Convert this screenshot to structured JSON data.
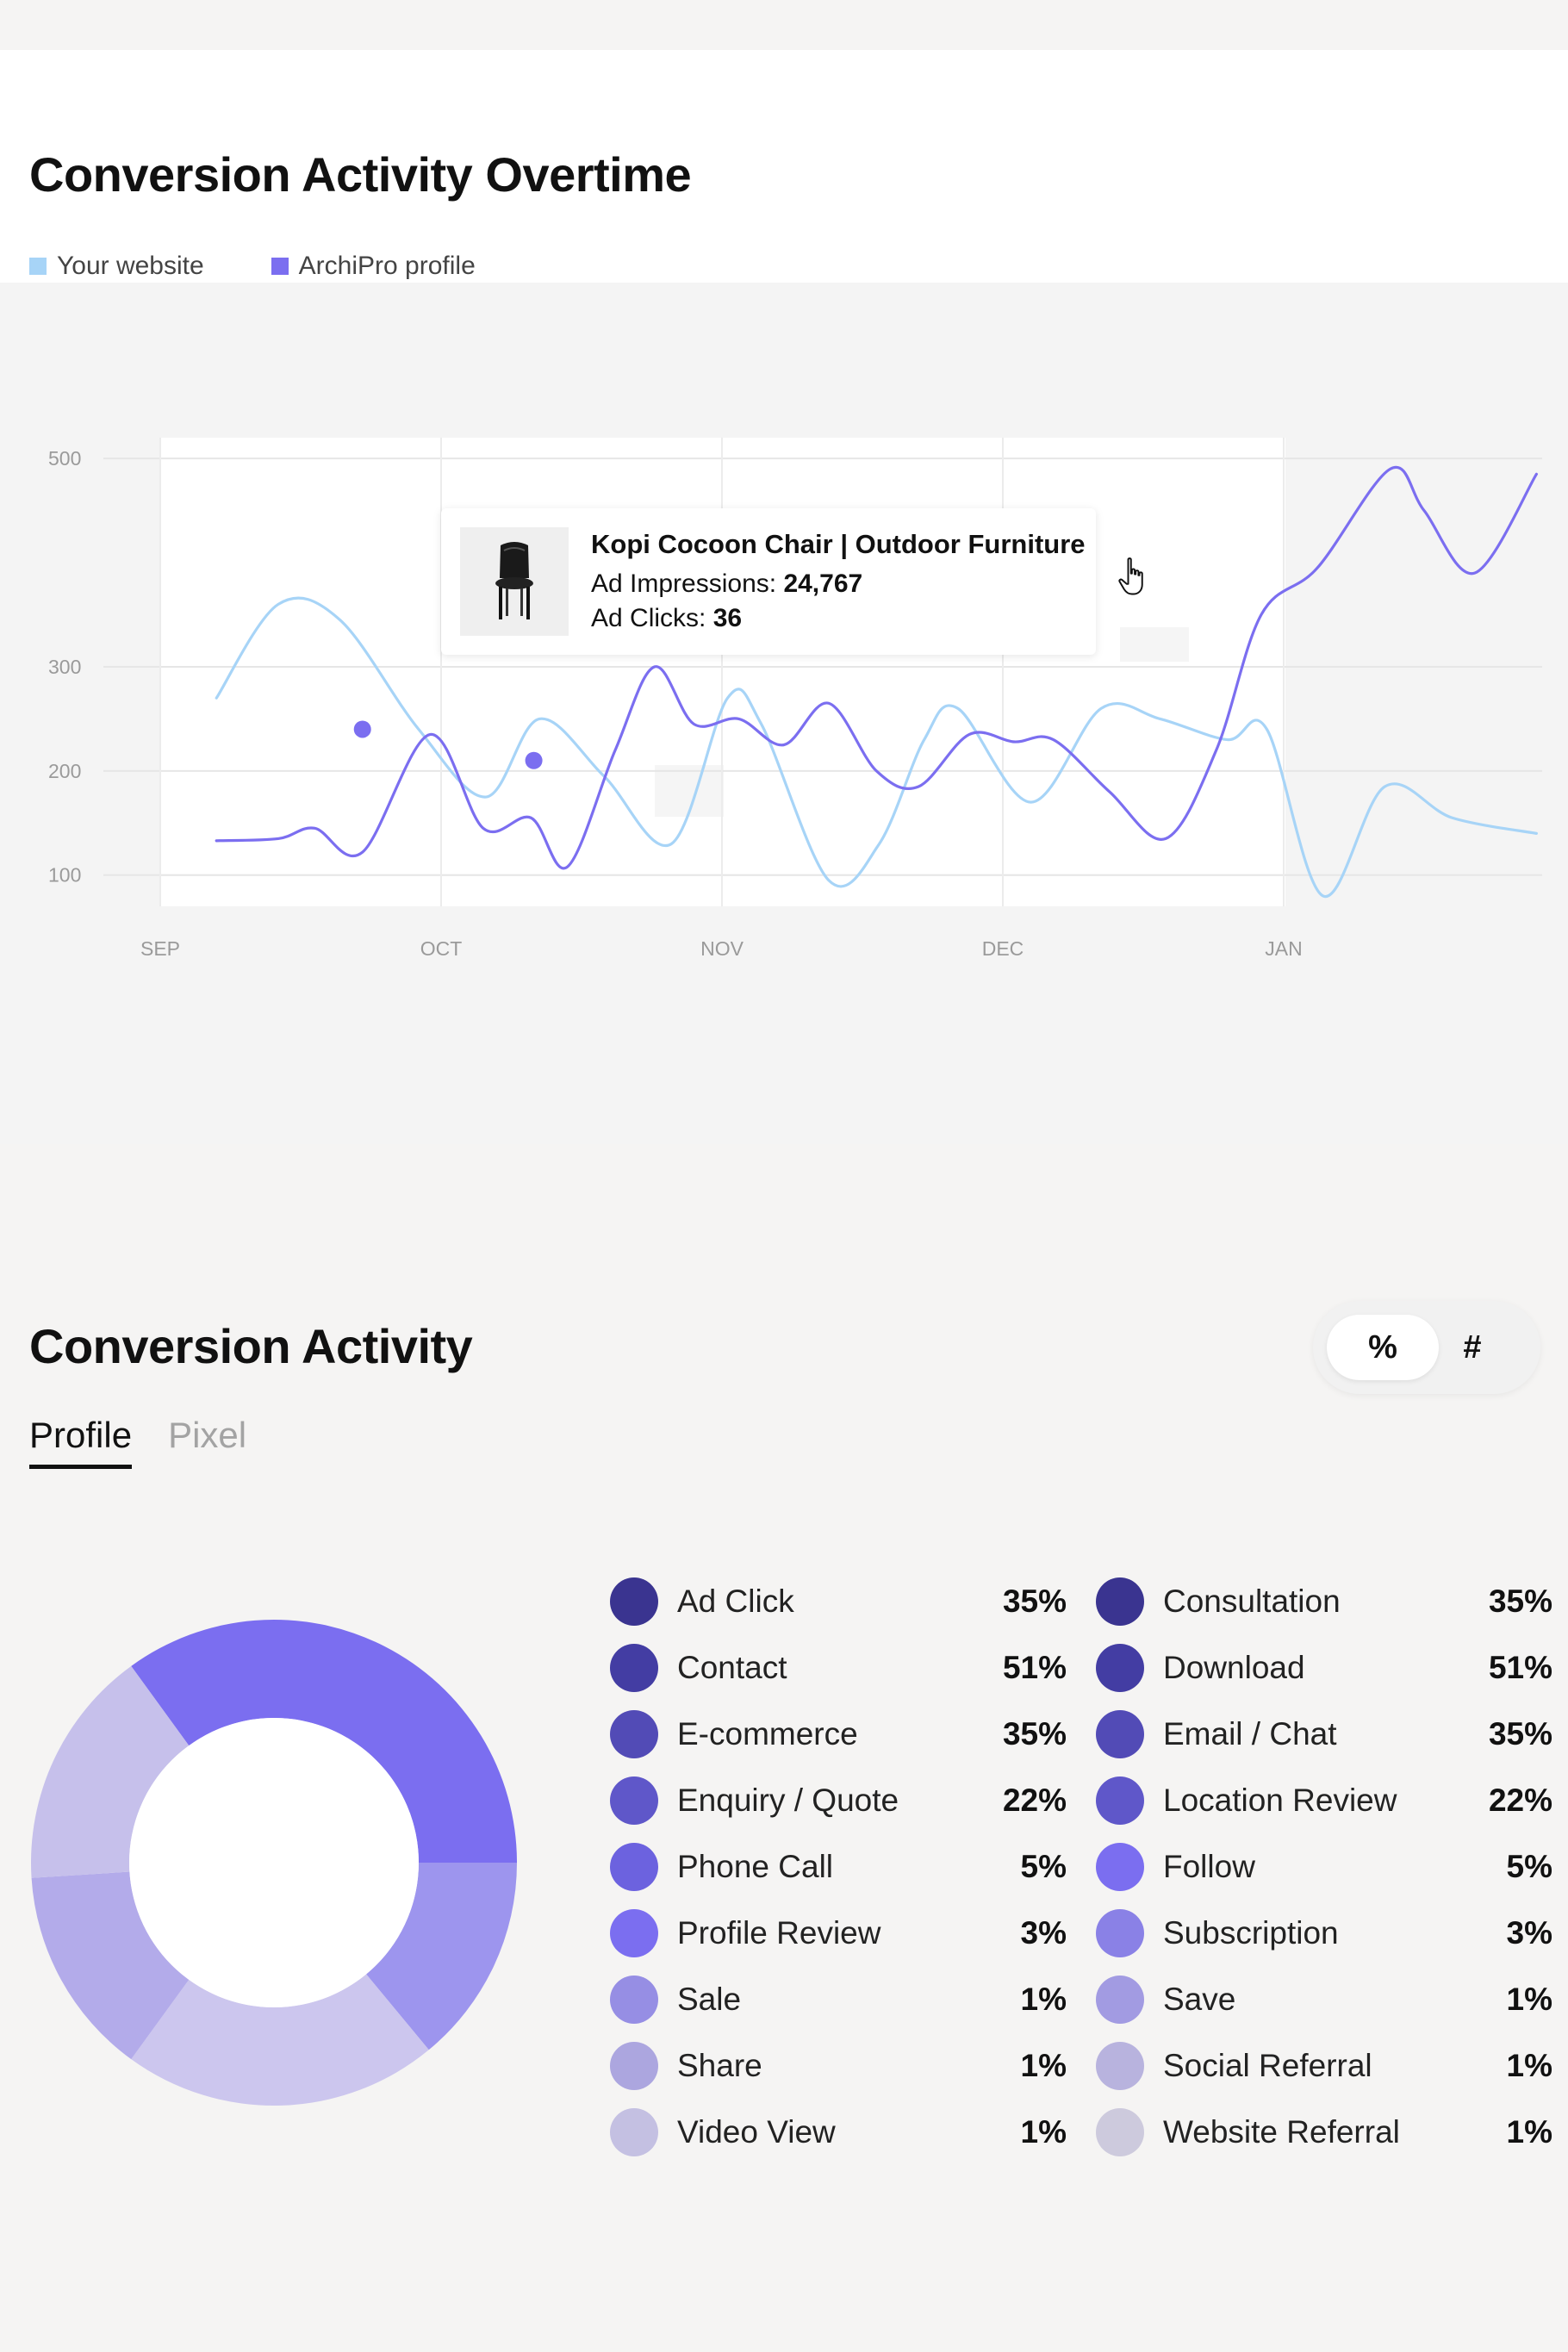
{
  "chart_section": {
    "title": "Conversion Activity Overtime",
    "legend": [
      {
        "label": "Your website",
        "color": "#a7d4f7"
      },
      {
        "label": "ArchiPro profile",
        "color": "#7b6ef0"
      }
    ]
  },
  "chart_data": {
    "type": "line",
    "title": "Conversion Activity Overtime",
    "x_labels": [
      "SEP",
      "OCT",
      "NOV",
      "DEC",
      "JAN"
    ],
    "y_ticks": [
      100,
      200,
      300,
      500
    ],
    "ylim": [
      70,
      520
    ],
    "grid": true,
    "series": [
      {
        "name": "Your website",
        "color": "#a7d4f7",
        "x": [
          0.2,
          0.42,
          0.64,
          0.92,
          1.16,
          1.35,
          1.58,
          1.82,
          2.02,
          2.14,
          2.38,
          2.56,
          2.72,
          2.84,
          3.1,
          3.35,
          3.56,
          3.8,
          3.94,
          4.14,
          4.36,
          4.6,
          4.9
        ],
        "values": [
          270,
          360,
          345,
          240,
          175,
          250,
          195,
          130,
          270,
          245,
          95,
          130,
          230,
          260,
          170,
          260,
          250,
          230,
          240,
          80,
          185,
          155,
          140
        ]
      },
      {
        "name": "ArchiPro profile",
        "color": "#7b6ef0",
        "x": [
          0.2,
          0.42,
          0.55,
          0.72,
          0.96,
          1.15,
          1.32,
          1.45,
          1.62,
          1.76,
          1.9,
          2.06,
          2.22,
          2.38,
          2.55,
          2.7,
          2.88,
          3.04,
          3.18,
          3.38,
          3.58,
          3.76,
          3.92,
          4.12,
          4.38,
          4.5,
          4.68,
          4.9
        ],
        "values": [
          133,
          135,
          145,
          122,
          235,
          145,
          155,
          108,
          220,
          300,
          245,
          250,
          225,
          265,
          200,
          185,
          235,
          228,
          230,
          180,
          135,
          220,
          350,
          395,
          490,
          450,
          390,
          485
        ]
      }
    ],
    "markers": [
      {
        "series": "ArchiPro profile",
        "x": 0.72,
        "value": 240
      },
      {
        "series": "ArchiPro profile",
        "x": 1.33,
        "value": 210
      }
    ],
    "tooltip": {
      "title": "Kopi Cocoon Chair | Outdoor Furniture",
      "impressions_label": "Ad Impressions:",
      "impressions_value": "24,767",
      "clicks_label": "Ad Clicks:",
      "clicks_value": "36",
      "thumbnail": "chair-icon"
    }
  },
  "activity_section": {
    "title": "Conversion Activity",
    "toggle": {
      "percent": "%",
      "count": "#",
      "selected": "percent"
    },
    "tabs": [
      {
        "label": "Profile",
        "active": true
      },
      {
        "label": "Pixel",
        "active": false
      }
    ],
    "donut": {
      "segments": [
        {
          "value": 35,
          "color": "#7b6ef0"
        },
        {
          "value": 14,
          "color": "#9d95ee"
        },
        {
          "value": 21,
          "color": "#ccc6ee"
        },
        {
          "value": 14,
          "color": "#b3abea"
        },
        {
          "value": 16,
          "color": "#c6c0eb"
        }
      ]
    },
    "list_left": [
      {
        "label": "Ad Click",
        "value": "35%",
        "color": "#3a3490"
      },
      {
        "label": "Contact",
        "value": "51%",
        "color": "#433da3"
      },
      {
        "label": "E-commerce",
        "value": "35%",
        "color": "#524bb6"
      },
      {
        "label": "Enquiry / Quote",
        "value": "22%",
        "color": "#5f57c9"
      },
      {
        "label": "Phone Call",
        "value": "5%",
        "color": "#6c62df"
      },
      {
        "label": "Profile Review",
        "value": "3%",
        "color": "#7b6ef0"
      },
      {
        "label": "Sale",
        "value": "1%",
        "color": "#968ee4"
      },
      {
        "label": "Share",
        "value": "1%",
        "color": "#aca6df"
      },
      {
        "label": "Video View",
        "value": "1%",
        "color": "#c4c0e2"
      }
    ],
    "list_right": [
      {
        "label": "Consultation",
        "value": "35%",
        "color": "#3a3490"
      },
      {
        "label": "Download",
        "value": "51%",
        "color": "#433da3"
      },
      {
        "label": "Email / Chat",
        "value": "35%",
        "color": "#524bb6"
      },
      {
        "label": "Location Review",
        "value": "22%",
        "color": "#5f57c9"
      },
      {
        "label": "Follow",
        "value": "5%",
        "color": "#7b6ef0"
      },
      {
        "label": "Subscription",
        "value": "3%",
        "color": "#8a81e6"
      },
      {
        "label": "Save",
        "value": "1%",
        "color": "#a29be2"
      },
      {
        "label": "Social Referral",
        "value": "1%",
        "color": "#b8b3de"
      },
      {
        "label": "Website Referral",
        "value": "1%",
        "color": "#cdcadd"
      }
    ]
  }
}
